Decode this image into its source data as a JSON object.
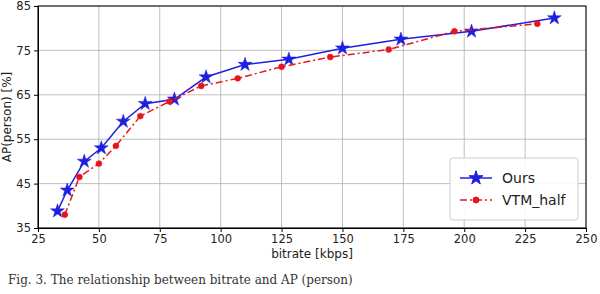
{
  "chart_data": {
    "type": "line",
    "x_label": "bitrate [kbps]",
    "y_label": "AP(person) [%]",
    "caption": "Fig. 3. The relationship between bitrate and AP (person)",
    "xlim": [
      25,
      250
    ],
    "xticks": [
      25,
      50,
      75,
      100,
      125,
      150,
      175,
      200,
      225,
      250
    ],
    "ylim": [
      35,
      85
    ],
    "yticks": [
      35,
      45,
      55,
      65,
      75,
      85
    ],
    "grid": true,
    "legend": "lower right",
    "series": [
      {
        "name": "Ours",
        "color": "#1f1fe0",
        "marker": "star",
        "line_style": "solid",
        "x": [
          33,
          37,
          44,
          51,
          60,
          69,
          81,
          94,
          110,
          128,
          150,
          174,
          203,
          237
        ],
        "values": [
          38.8,
          43.5,
          50,
          53,
          59,
          63,
          64,
          69,
          71.8,
          73,
          75.5,
          77.5,
          79.3,
          82.3
        ]
      },
      {
        "name": "VTM_half",
        "color": "#e8141c",
        "marker": "circle",
        "line_style": "dashdot",
        "x": [
          36,
          42,
          50,
          57,
          67,
          79,
          92,
          107,
          125,
          145,
          169,
          196,
          230
        ],
        "values": [
          38,
          46.5,
          49.5,
          53.5,
          60.2,
          63.5,
          67,
          68.7,
          71.3,
          73.5,
          75.2,
          79.3,
          81
        ]
      }
    ]
  }
}
